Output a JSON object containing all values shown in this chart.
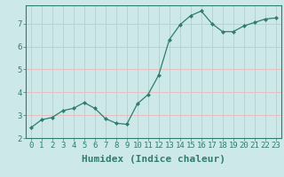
{
  "x": [
    0,
    1,
    2,
    3,
    4,
    5,
    6,
    7,
    8,
    9,
    10,
    11,
    12,
    13,
    14,
    15,
    16,
    17,
    18,
    19,
    20,
    21,
    22,
    23
  ],
  "y": [
    2.45,
    2.8,
    2.9,
    3.2,
    3.3,
    3.55,
    3.3,
    2.85,
    2.65,
    2.6,
    3.5,
    3.9,
    4.75,
    6.3,
    6.95,
    7.35,
    7.55,
    7.0,
    6.65,
    6.65,
    6.9,
    7.05,
    7.2,
    7.25
  ],
  "xlabel": "Humidex (Indice chaleur)",
  "ylim": [
    2,
    7.8
  ],
  "xlim": [
    -0.5,
    23.5
  ],
  "yticks": [
    2,
    3,
    4,
    5,
    6,
    7
  ],
  "xticks": [
    0,
    1,
    2,
    3,
    4,
    5,
    6,
    7,
    8,
    9,
    10,
    11,
    12,
    13,
    14,
    15,
    16,
    17,
    18,
    19,
    20,
    21,
    22,
    23
  ],
  "line_color": "#2e7d6e",
  "marker": "D",
  "marker_size": 2.0,
  "bg_color": "#cce8e8",
  "grid_color": "#e8b8b8",
  "tick_label_fontsize": 6.5,
  "xlabel_fontsize": 8,
  "axis_label_color": "#2e7d6e"
}
